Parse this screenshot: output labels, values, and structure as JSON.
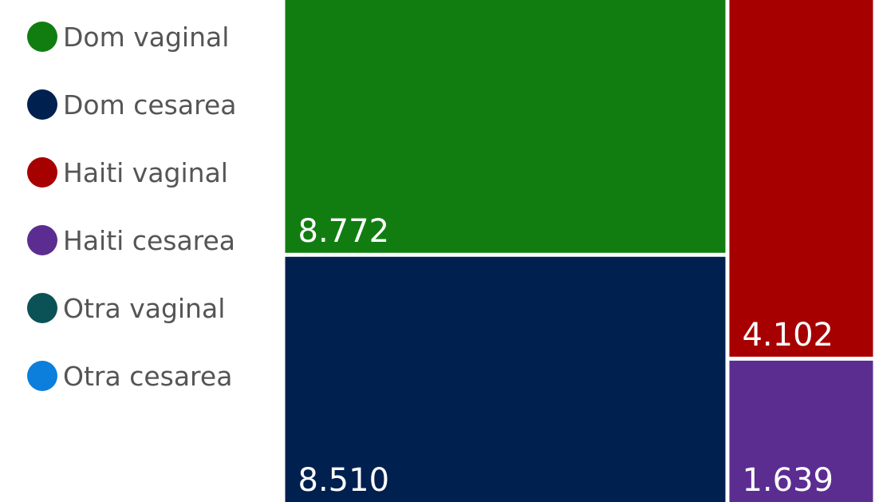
{
  "chart_data": {
    "type": "treemap",
    "title": "",
    "legend_position": "left",
    "series": [
      {
        "name": "Dom vaginal",
        "value": 8772,
        "label": "8.772",
        "color": "#117d11"
      },
      {
        "name": "Dom cesarea",
        "value": 8510,
        "label": "8.510",
        "color": "#00204f"
      },
      {
        "name": "Haiti vaginal",
        "value": 4102,
        "label": "4.102",
        "color": "#a60000"
      },
      {
        "name": "Haiti cesarea",
        "value": 1639,
        "label": "1.639",
        "color": "#5b2d91"
      },
      {
        "name": "Otra vaginal",
        "value": null,
        "label": "",
        "color": "#0b5256"
      },
      {
        "name": "Otra cesarea",
        "value": null,
        "label": "",
        "color": "#0b7fdb"
      }
    ]
  }
}
